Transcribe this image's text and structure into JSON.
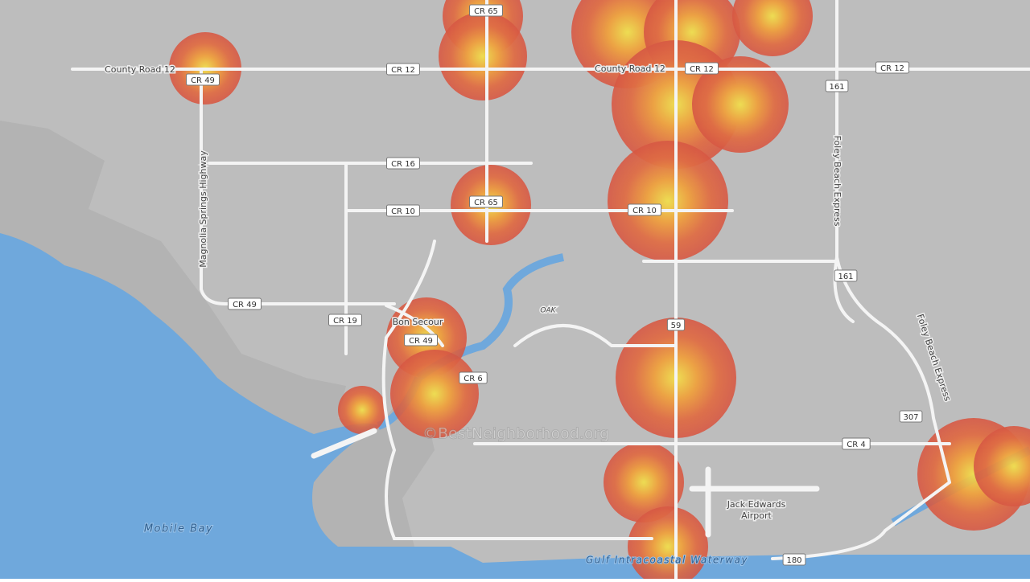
{
  "map": {
    "shields": [
      "CR 49",
      "CR 12",
      "CR 65",
      "CR 12",
      "CR 12",
      "161",
      "CR 16",
      "CR 65",
      "CR 10",
      "CR 10",
      "161",
      "CR 49",
      "CR 19",
      "CR 49",
      "59",
      "CR 6",
      "307",
      "CR 4",
      "180"
    ],
    "road_names": [
      "County Road 12",
      "County Road 12",
      "Foley Beach Express",
      "Magnolia Springs Highway",
      "Foley Beach Express",
      "OAK"
    ],
    "places": [
      "Bon Secour",
      "Jack Edwards",
      "Airport"
    ],
    "water": [
      "Mobile Bay",
      "Gulf Intracoastal Waterway"
    ],
    "watermark": "©BestNeighborhood.org"
  }
}
